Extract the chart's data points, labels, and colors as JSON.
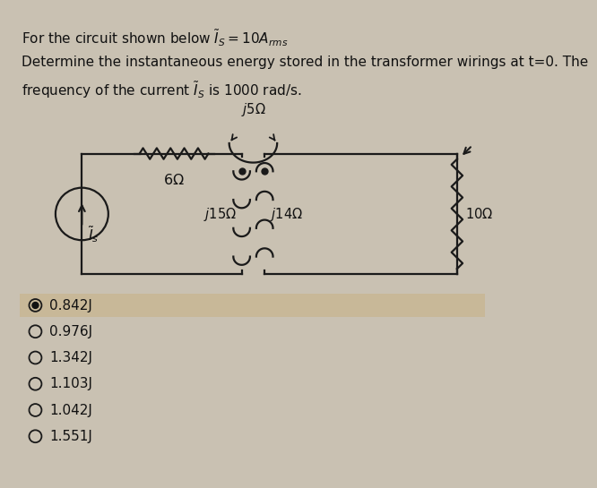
{
  "background_color": "#c9c1b2",
  "title_line1": "For the circuit shown below $\\widetilde{I}_S = 10A_{rms}$",
  "title_line2": "Determine the instantaneous energy stored in the transformer wirings at t=0. The",
  "title_line3": "frequency of the current $\\widetilde{I}_S$ is 1000 rad/s.",
  "answer_options": [
    "0.842J",
    "0.976J",
    "1.342J",
    "1.103J",
    "1.042J",
    "1.551J"
  ],
  "selected_option": 0,
  "text_color": "#111111",
  "circuit_color": "#1a1a1a",
  "selected_bg": "#c8b898",
  "font_size_text": 10.5,
  "font_size_circuit": 10.5
}
